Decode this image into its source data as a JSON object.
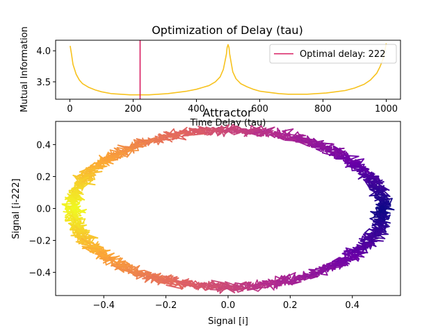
{
  "chart_data": [
    {
      "type": "line",
      "title": "Optimization of Delay (tau)",
      "xlabel": "Time Delay (tau)",
      "ylabel": "Mutual Information",
      "xlim": [
        -45,
        1045
      ],
      "ylim": [
        3.22,
        4.17
      ],
      "x_ticks": [
        0,
        200,
        400,
        600,
        800,
        1000
      ],
      "x_tick_labels": [
        "0",
        "200",
        "400",
        "600",
        "800",
        "1000"
      ],
      "y_ticks": [
        3.5,
        4.0
      ],
      "y_tick_labels": [
        "3.5",
        "4.0"
      ],
      "series": [
        {
          "name": "",
          "color": "#f7c21e",
          "x": [
            1,
            5,
            10,
            20,
            30,
            40,
            60,
            80,
            100,
            130,
            160,
            190,
            222,
            250,
            280,
            310,
            340,
            370,
            400,
            420,
            440,
            460,
            475,
            485,
            490,
            495,
            497,
            500,
            503,
            505,
            510,
            515,
            525,
            540,
            560,
            580,
            600,
            630,
            660,
            690,
            720,
            750,
            780,
            810,
            840,
            870,
            900,
            930,
            950,
            970,
            980,
            990,
            995,
            1000
          ],
          "y": [
            4.08,
            3.95,
            3.78,
            3.62,
            3.53,
            3.47,
            3.41,
            3.37,
            3.34,
            3.31,
            3.3,
            3.29,
            3.29,
            3.29,
            3.3,
            3.31,
            3.33,
            3.35,
            3.38,
            3.41,
            3.44,
            3.5,
            3.58,
            3.7,
            3.82,
            3.95,
            4.05,
            4.1,
            4.05,
            3.95,
            3.8,
            3.66,
            3.55,
            3.47,
            3.42,
            3.38,
            3.35,
            3.33,
            3.31,
            3.3,
            3.3,
            3.3,
            3.31,
            3.32,
            3.34,
            3.36,
            3.4,
            3.46,
            3.53,
            3.64,
            3.74,
            3.87,
            3.98,
            4.12
          ]
        }
      ],
      "vline": {
        "x": 222,
        "name": "Optimal delay: 222",
        "color": "#d81b60"
      },
      "legend": {
        "entries": [
          "Optimal delay: 222"
        ],
        "placement": "upper right"
      }
    },
    {
      "type": "line",
      "title": "Attractor",
      "xlabel": "Signal [i]",
      "ylabel": "Signal [i-222]",
      "xlim": [
        -0.555,
        0.555
      ],
      "ylim": [
        -0.545,
        0.545
      ],
      "x_ticks": [
        -0.4,
        -0.2,
        0.0,
        0.2,
        0.4
      ],
      "x_tick_labels": [
        "−0.4",
        "−0.2",
        "0.0",
        "0.2",
        "0.4"
      ],
      "y_ticks": [
        -0.4,
        -0.2,
        0.0,
        0.2,
        0.4
      ],
      "y_tick_labels": [
        "−0.4",
        "−0.2",
        "0.0",
        "0.2",
        "0.4"
      ],
      "colormap": [
        "#0d0887",
        "#6a00a8",
        "#b12a90",
        "#e16462",
        "#fca636",
        "#f0f921"
      ],
      "curve": {
        "shape": "ellipse",
        "center": [
          0.0,
          0.0
        ],
        "x_amplitude": 0.5,
        "y_amplitude": 0.49,
        "noise": 0.03
      }
    }
  ]
}
